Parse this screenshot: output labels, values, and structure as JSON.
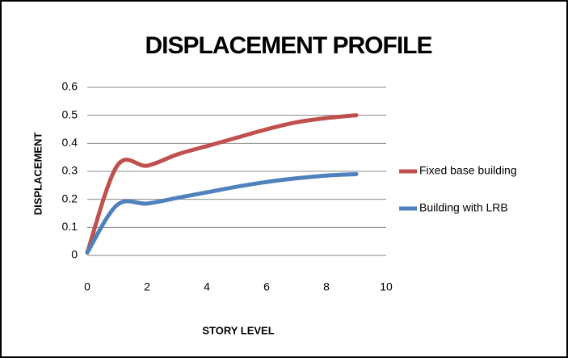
{
  "chart_data": {
    "type": "line",
    "title": "DISPLACEMENT PROFILE",
    "x_label": "STORY LEVEL",
    "y_label": "DISPLACEMENT",
    "x": [
      0,
      1,
      2,
      3,
      4,
      5,
      6,
      7,
      8,
      9
    ],
    "series": [
      {
        "name": "Fixed base building",
        "color": "#c0504d",
        "values": [
          0.01,
          0.32,
          0.32,
          0.36,
          0.39,
          0.42,
          0.45,
          0.475,
          0.49,
          0.5
        ]
      },
      {
        "name": "Building with LRB",
        "color": "#4f81bd",
        "values": [
          0.01,
          0.18,
          0.185,
          0.205,
          0.225,
          0.245,
          0.262,
          0.275,
          0.285,
          0.29
        ]
      }
    ],
    "xlim": [
      0,
      10
    ],
    "xticks": [
      0,
      2,
      4,
      6,
      8,
      10
    ],
    "ylim": [
      0,
      0.6
    ],
    "yticks": [
      0,
      0.1,
      0.2,
      0.3,
      0.4,
      0.5,
      0.6
    ],
    "grid": true,
    "legend": "right",
    "smooth": true
  }
}
